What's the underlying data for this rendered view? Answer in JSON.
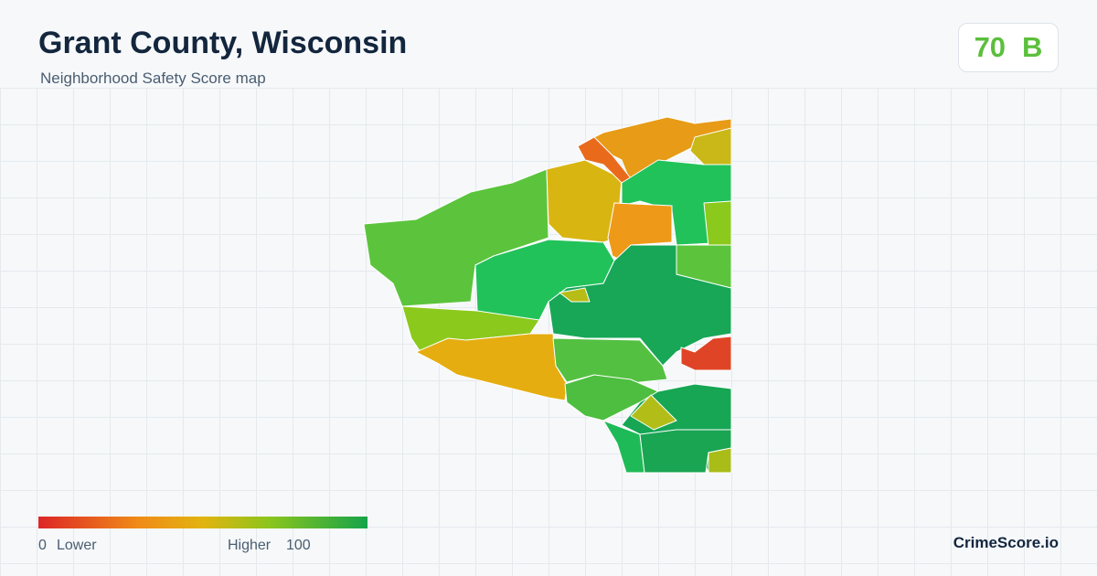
{
  "header": {
    "title": "Grant County, Wisconsin",
    "subtitle": "Neighborhood Safety Score map"
  },
  "score": {
    "value": 70,
    "grade": "B"
  },
  "legend": {
    "min": 0,
    "min_label": "Lower",
    "max_label": "Higher",
    "max": 100
  },
  "brand": "CrimeScore.io"
}
